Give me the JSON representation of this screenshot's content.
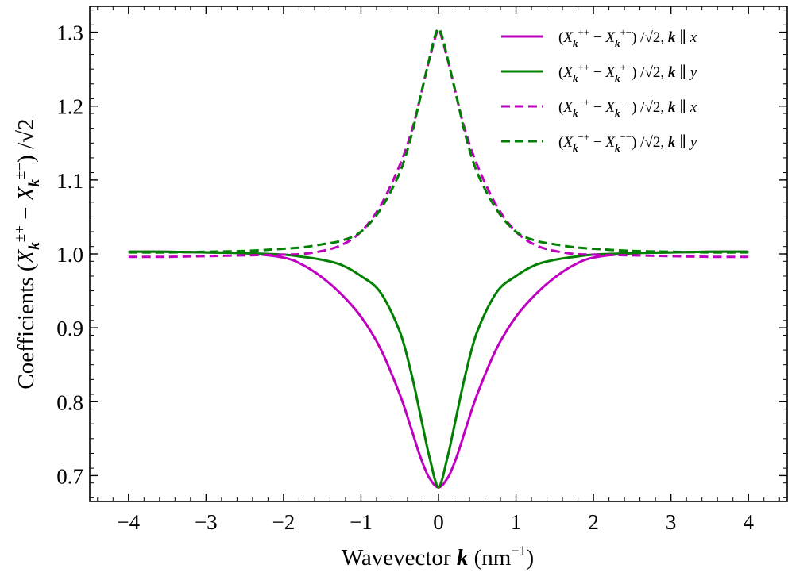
{
  "chart_data": {
    "type": "line",
    "xlabel": "Wavevector k (nm⁻¹)",
    "ylabel": "Coefficients (X_k^±+ − X_k^±−) /√2",
    "xlim": [
      -4.5,
      4.5
    ],
    "ylim": [
      0.665,
      1.335
    ],
    "xticks": [
      -4,
      -3,
      -2,
      -1,
      0,
      1,
      2,
      3,
      4
    ],
    "xtick_labels": [
      "−4",
      "−3",
      "−2",
      "−1",
      "0",
      "1",
      "2",
      "3",
      "4"
    ],
    "yticks": [
      0.7,
      0.8,
      0.9,
      1.0,
      1.1,
      1.2,
      1.3
    ],
    "ytick_labels": [
      "0.7",
      "0.8",
      "0.9",
      "1.0",
      "1.1",
      "1.2",
      "1.3"
    ],
    "grid": false,
    "legend_position": "top-right",
    "x": [
      -4.0,
      -3.5,
      -3.0,
      -2.5,
      -2.0,
      -1.75,
      -1.5,
      -1.25,
      -1.0,
      -0.75,
      -0.5,
      -0.35,
      -0.25,
      -0.15,
      -0.1,
      -0.05,
      0.0,
      0.05,
      0.1,
      0.15,
      0.25,
      0.35,
      0.5,
      0.75,
      1.0,
      1.25,
      1.5,
      1.75,
      2.0,
      2.5,
      3.0,
      3.5,
      4.0
    ],
    "series": [
      {
        "name": "(X_k^++ − X_k^+−) /√2, k ∥ x",
        "color": "#bf00bf",
        "dash": "solid",
        "values": [
          1.003,
          1.003,
          1.002,
          1.001,
          0.995,
          0.985,
          0.968,
          0.945,
          0.915,
          0.872,
          0.81,
          0.763,
          0.73,
          0.703,
          0.694,
          0.687,
          0.684,
          0.687,
          0.694,
          0.703,
          0.73,
          0.763,
          0.81,
          0.872,
          0.915,
          0.945,
          0.968,
          0.985,
          0.995,
          1.001,
          1.002,
          1.003,
          1.003
        ]
      },
      {
        "name": "(X_k^++ − X_k^+−) /√2, k ∥ y",
        "color": "#008000",
        "dash": "solid",
        "values": [
          1.003,
          1.003,
          1.002,
          1.001,
          0.999,
          0.996,
          0.992,
          0.985,
          0.97,
          0.948,
          0.895,
          0.838,
          0.79,
          0.74,
          0.718,
          0.696,
          0.684,
          0.696,
          0.718,
          0.74,
          0.79,
          0.838,
          0.895,
          0.948,
          0.97,
          0.985,
          0.992,
          0.996,
          0.999,
          1.001,
          1.002,
          1.003,
          1.003
        ]
      },
      {
        "name": "(X_k^−+ − X_k^−−) /√2, k ∥ x",
        "color": "#bf00bf",
        "dash": "dashed",
        "values": [
          0.996,
          0.996,
          0.997,
          0.998,
          0.999,
          1.0,
          1.004,
          1.012,
          1.03,
          1.065,
          1.12,
          1.165,
          1.205,
          1.25,
          1.27,
          1.29,
          1.303,
          1.29,
          1.27,
          1.25,
          1.205,
          1.165,
          1.12,
          1.065,
          1.03,
          1.012,
          1.004,
          1.0,
          0.999,
          0.998,
          0.997,
          0.996,
          0.996
        ]
      },
      {
        "name": "(X_k^−+ − X_k^−−) /√2, k ∥ y",
        "color": "#008000",
        "dash": "dashed",
        "values": [
          1.002,
          1.002,
          1.003,
          1.004,
          1.007,
          1.009,
          1.013,
          1.018,
          1.03,
          1.06,
          1.11,
          1.16,
          1.205,
          1.25,
          1.272,
          1.293,
          1.305,
          1.293,
          1.272,
          1.25,
          1.205,
          1.16,
          1.11,
          1.06,
          1.03,
          1.018,
          1.013,
          1.009,
          1.007,
          1.004,
          1.003,
          1.002,
          1.002
        ]
      }
    ]
  }
}
